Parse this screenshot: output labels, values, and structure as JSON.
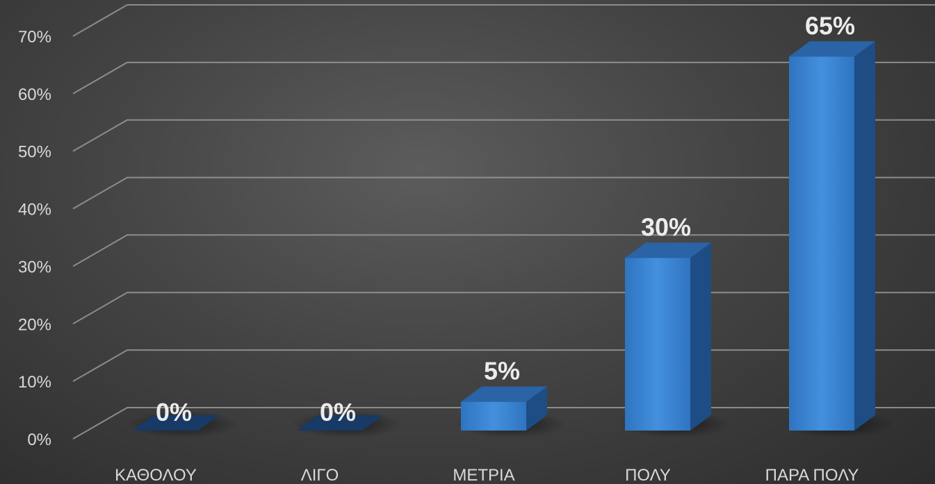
{
  "chart_data": {
    "type": "bar",
    "title": "",
    "xlabel": "",
    "ylabel": "",
    "categories": [
      "ΚΑΘΟΛΟΥ",
      "ΛΙΓΟ",
      "ΜΕΤΡΙΑ",
      "ΠΟΛΥ",
      "ΠΑΡΑ ΠΟΛΥ"
    ],
    "values": [
      0,
      0,
      5,
      30,
      65
    ],
    "data_labels": [
      "0%",
      "0%",
      "5%",
      "30%",
      "65%"
    ],
    "ylim": [
      0,
      70
    ],
    "yticks": [
      0,
      10,
      20,
      30,
      40,
      50,
      60,
      70
    ],
    "ytick_labels": [
      "0%",
      "10%",
      "20%",
      "30%",
      "40%",
      "50%",
      "60%",
      "70%"
    ],
    "grid": true,
    "legend": "none",
    "style": "3d-column",
    "colors": {
      "bar_front": "#3c86d4",
      "bar_top": "#2a63a6",
      "bar_side": "#1e4d85",
      "bar_base": "#173a66",
      "grid": "#9a9a9a",
      "text": "#d9d9d9"
    }
  }
}
